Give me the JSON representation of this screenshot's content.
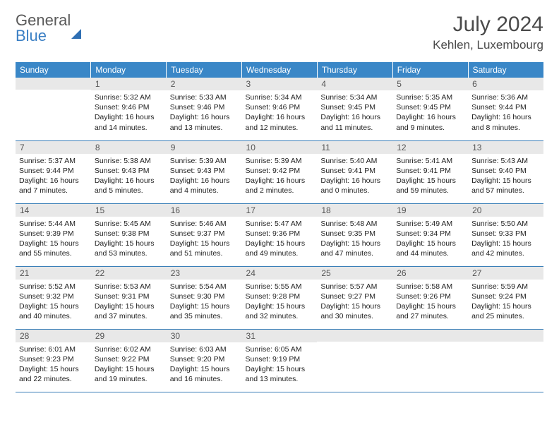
{
  "logo": {
    "word1": "General",
    "word2": "Blue"
  },
  "title": "July 2024",
  "location": "Kehlen, Luxembourg",
  "colors": {
    "header_bg": "#3a87c7",
    "header_text": "#ffffff",
    "daynum_bg": "#e8e8e8",
    "row_border": "#3a7fb8",
    "logo_gray": "#5a5a5a",
    "logo_blue": "#3a7fc4"
  },
  "typography": {
    "title_fontsize": 30,
    "location_fontsize": 17,
    "weekday_fontsize": 12,
    "daynum_fontsize": 12,
    "body_fontsize": 10.5
  },
  "weekdays": [
    "Sunday",
    "Monday",
    "Tuesday",
    "Wednesday",
    "Thursday",
    "Friday",
    "Saturday"
  ],
  "weeks": [
    [
      {
        "day": "",
        "lines": []
      },
      {
        "day": "1",
        "lines": [
          "Sunrise: 5:32 AM",
          "Sunset: 9:46 PM",
          "Daylight: 16 hours",
          "and 14 minutes."
        ]
      },
      {
        "day": "2",
        "lines": [
          "Sunrise: 5:33 AM",
          "Sunset: 9:46 PM",
          "Daylight: 16 hours",
          "and 13 minutes."
        ]
      },
      {
        "day": "3",
        "lines": [
          "Sunrise: 5:34 AM",
          "Sunset: 9:46 PM",
          "Daylight: 16 hours",
          "and 12 minutes."
        ]
      },
      {
        "day": "4",
        "lines": [
          "Sunrise: 5:34 AM",
          "Sunset: 9:45 PM",
          "Daylight: 16 hours",
          "and 11 minutes."
        ]
      },
      {
        "day": "5",
        "lines": [
          "Sunrise: 5:35 AM",
          "Sunset: 9:45 PM",
          "Daylight: 16 hours",
          "and 9 minutes."
        ]
      },
      {
        "day": "6",
        "lines": [
          "Sunrise: 5:36 AM",
          "Sunset: 9:44 PM",
          "Daylight: 16 hours",
          "and 8 minutes."
        ]
      }
    ],
    [
      {
        "day": "7",
        "lines": [
          "Sunrise: 5:37 AM",
          "Sunset: 9:44 PM",
          "Daylight: 16 hours",
          "and 7 minutes."
        ]
      },
      {
        "day": "8",
        "lines": [
          "Sunrise: 5:38 AM",
          "Sunset: 9:43 PM",
          "Daylight: 16 hours",
          "and 5 minutes."
        ]
      },
      {
        "day": "9",
        "lines": [
          "Sunrise: 5:39 AM",
          "Sunset: 9:43 PM",
          "Daylight: 16 hours",
          "and 4 minutes."
        ]
      },
      {
        "day": "10",
        "lines": [
          "Sunrise: 5:39 AM",
          "Sunset: 9:42 PM",
          "Daylight: 16 hours",
          "and 2 minutes."
        ]
      },
      {
        "day": "11",
        "lines": [
          "Sunrise: 5:40 AM",
          "Sunset: 9:41 PM",
          "Daylight: 16 hours",
          "and 0 minutes."
        ]
      },
      {
        "day": "12",
        "lines": [
          "Sunrise: 5:41 AM",
          "Sunset: 9:41 PM",
          "Daylight: 15 hours",
          "and 59 minutes."
        ]
      },
      {
        "day": "13",
        "lines": [
          "Sunrise: 5:43 AM",
          "Sunset: 9:40 PM",
          "Daylight: 15 hours",
          "and 57 minutes."
        ]
      }
    ],
    [
      {
        "day": "14",
        "lines": [
          "Sunrise: 5:44 AM",
          "Sunset: 9:39 PM",
          "Daylight: 15 hours",
          "and 55 minutes."
        ]
      },
      {
        "day": "15",
        "lines": [
          "Sunrise: 5:45 AM",
          "Sunset: 9:38 PM",
          "Daylight: 15 hours",
          "and 53 minutes."
        ]
      },
      {
        "day": "16",
        "lines": [
          "Sunrise: 5:46 AM",
          "Sunset: 9:37 PM",
          "Daylight: 15 hours",
          "and 51 minutes."
        ]
      },
      {
        "day": "17",
        "lines": [
          "Sunrise: 5:47 AM",
          "Sunset: 9:36 PM",
          "Daylight: 15 hours",
          "and 49 minutes."
        ]
      },
      {
        "day": "18",
        "lines": [
          "Sunrise: 5:48 AM",
          "Sunset: 9:35 PM",
          "Daylight: 15 hours",
          "and 47 minutes."
        ]
      },
      {
        "day": "19",
        "lines": [
          "Sunrise: 5:49 AM",
          "Sunset: 9:34 PM",
          "Daylight: 15 hours",
          "and 44 minutes."
        ]
      },
      {
        "day": "20",
        "lines": [
          "Sunrise: 5:50 AM",
          "Sunset: 9:33 PM",
          "Daylight: 15 hours",
          "and 42 minutes."
        ]
      }
    ],
    [
      {
        "day": "21",
        "lines": [
          "Sunrise: 5:52 AM",
          "Sunset: 9:32 PM",
          "Daylight: 15 hours",
          "and 40 minutes."
        ]
      },
      {
        "day": "22",
        "lines": [
          "Sunrise: 5:53 AM",
          "Sunset: 9:31 PM",
          "Daylight: 15 hours",
          "and 37 minutes."
        ]
      },
      {
        "day": "23",
        "lines": [
          "Sunrise: 5:54 AM",
          "Sunset: 9:30 PM",
          "Daylight: 15 hours",
          "and 35 minutes."
        ]
      },
      {
        "day": "24",
        "lines": [
          "Sunrise: 5:55 AM",
          "Sunset: 9:28 PM",
          "Daylight: 15 hours",
          "and 32 minutes."
        ]
      },
      {
        "day": "25",
        "lines": [
          "Sunrise: 5:57 AM",
          "Sunset: 9:27 PM",
          "Daylight: 15 hours",
          "and 30 minutes."
        ]
      },
      {
        "day": "26",
        "lines": [
          "Sunrise: 5:58 AM",
          "Sunset: 9:26 PM",
          "Daylight: 15 hours",
          "and 27 minutes."
        ]
      },
      {
        "day": "27",
        "lines": [
          "Sunrise: 5:59 AM",
          "Sunset: 9:24 PM",
          "Daylight: 15 hours",
          "and 25 minutes."
        ]
      }
    ],
    [
      {
        "day": "28",
        "lines": [
          "Sunrise: 6:01 AM",
          "Sunset: 9:23 PM",
          "Daylight: 15 hours",
          "and 22 minutes."
        ]
      },
      {
        "day": "29",
        "lines": [
          "Sunrise: 6:02 AM",
          "Sunset: 9:22 PM",
          "Daylight: 15 hours",
          "and 19 minutes."
        ]
      },
      {
        "day": "30",
        "lines": [
          "Sunrise: 6:03 AM",
          "Sunset: 9:20 PM",
          "Daylight: 15 hours",
          "and 16 minutes."
        ]
      },
      {
        "day": "31",
        "lines": [
          "Sunrise: 6:05 AM",
          "Sunset: 9:19 PM",
          "Daylight: 15 hours",
          "and 13 minutes."
        ]
      },
      {
        "day": "",
        "lines": []
      },
      {
        "day": "",
        "lines": []
      },
      {
        "day": "",
        "lines": []
      }
    ]
  ]
}
